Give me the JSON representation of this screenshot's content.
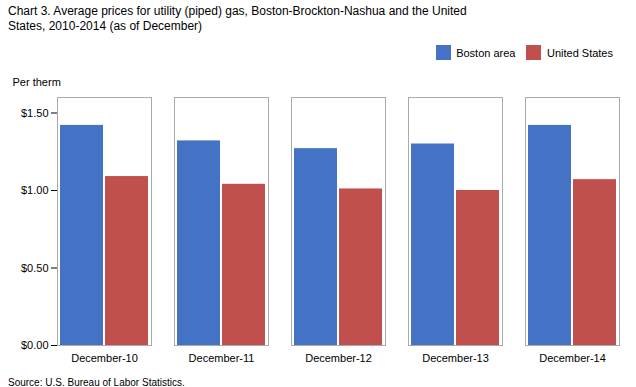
{
  "chart_data": {
    "type": "bar",
    "title": "Chart 3. Average prices for utility (piped) gas, Boston-Brockton-Nashua and the United\nStates, 2010-2014 (as of December)",
    "ylabel": "Per therm",
    "source": "Source: U.S. Bureau of Labor Statistics.",
    "categories": [
      "December-10",
      "December-11",
      "December-12",
      "December-13",
      "December-14"
    ],
    "series": [
      {
        "name": "Boston area",
        "color": "#4472C4",
        "values": [
          1.42,
          1.32,
          1.27,
          1.3,
          1.42
        ]
      },
      {
        "name": "United States",
        "color": "#C0504D",
        "values": [
          1.09,
          1.04,
          1.01,
          1.0,
          1.07
        ]
      }
    ],
    "ylim": [
      0,
      1.6
    ],
    "yticks": [
      {
        "value": 0.0,
        "label": "$0.00"
      },
      {
        "value": 0.5,
        "label": "$0.50"
      },
      {
        "value": 1.0,
        "label": "$1.00"
      },
      {
        "value": 1.5,
        "label": "$1.50"
      }
    ],
    "grid": false,
    "legend": "upper right"
  }
}
